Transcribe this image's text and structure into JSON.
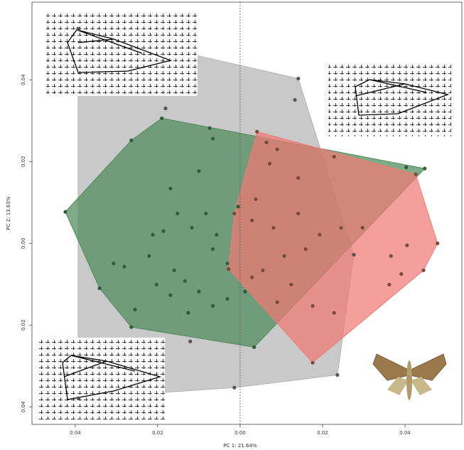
{
  "chart_data": {
    "type": "scatter",
    "x_label": "PC 1: 21.64%",
    "y_label": "PC 2: 13.63%",
    "xlim": [
      -0.0505,
      0.0538
    ],
    "ylim": [
      -0.0443,
      0.059
    ],
    "xticks": [
      {
        "value": -0.04,
        "label": "0.04"
      },
      {
        "value": -0.02,
        "label": "0.02"
      },
      {
        "value": 0,
        "label": "0.00"
      },
      {
        "value": 0.02,
        "label": "0.02"
      },
      {
        "value": 0.04,
        "label": "0.04"
      }
    ],
    "yticks": [
      {
        "value": -0.04,
        "label": "0.04"
      },
      {
        "value": -0.02,
        "label": "0.02"
      },
      {
        "value": 0,
        "label": "0.00"
      },
      {
        "value": 0.02,
        "label": "0.02"
      },
      {
        "value": 0.04,
        "label": "0.04"
      }
    ],
    "zero_line": true,
    "hulls": true,
    "series": [
      {
        "color": "#555555",
        "hull_color": "#b4b4b4",
        "x": [
          -0.0393,
          0.0141,
          0.0276,
          0.0236,
          -0.0393,
          0.0133,
          -0.0181,
          -0.0121,
          -0.0014
        ],
        "values": [
          0.0525,
          0.0403,
          -0.0028,
          -0.0322,
          -0.0379,
          0.0351,
          0.033,
          -0.024,
          -0.0353
        ]
      },
      {
        "color": "#2f5e3c",
        "hull_color": "#4f8a5c",
        "x": [
          -0.0424,
          -0.019,
          0.0448,
          0.0034,
          -0.0264,
          -0.0341,
          -0.0074,
          -0.0066,
          -0.0264,
          -0.0169,
          -0.01,
          -0.0152,
          -0.0212,
          -0.0186,
          -0.0117,
          -0.0066,
          -0.0307,
          -0.0281,
          -0.0221,
          -0.016,
          -0.0134,
          -0.01,
          -0.0066,
          -0.0031,
          -0.0169,
          -0.0255,
          -0.0126,
          -0.0057,
          -0.0083,
          -0.0203,
          -0.0031,
          -0.0005,
          0.0012,
          0.0403
        ],
        "values": [
          0.0077,
          0.0306,
          0.0183,
          -0.0254,
          -0.0205,
          -0.011,
          0.0282,
          0.0256,
          0.0252,
          0.0134,
          0.0177,
          0.0073,
          0.0021,
          0.003,
          0.0038,
          -0.0014,
          -0.0049,
          -0.0057,
          -0.0031,
          -0.0066,
          -0.0092,
          -0.0118,
          -0.0153,
          -0.0136,
          -0.0127,
          -0.0162,
          -0.017,
          0.0021,
          0.0073,
          -0.0101,
          -0.0049,
          0.009,
          -0.0118,
          0.0186
        ]
      },
      {
        "color": "#7a4a3c",
        "hull_color": "#f07a74",
        "x": [
          0.0041,
          0.0426,
          0.0479,
          0.0445,
          0.0176,
          -0.0028,
          -0.0014,
          0.0064,
          0.009,
          0.0072,
          0.0141,
          0.0228,
          0.0038,
          0.0029,
          0.0081,
          0.0141,
          0.0193,
          0.0245,
          0.0297,
          0.0107,
          0.0159,
          0.0055,
          0.0124,
          0.0176,
          0.009,
          0.0366,
          0.0405,
          0.0362,
          0.0391,
          0.0228,
          0.0029
        ],
        "values": [
          0.0273,
          0.0169,
          0.0,
          -0.0066,
          -0.0292,
          -0.0063,
          0.0073,
          0.0247,
          0.023,
          0.0195,
          0.016,
          0.0212,
          0.0108,
          0.0056,
          0.0038,
          0.0073,
          0.0021,
          0.0038,
          0.0038,
          -0.0031,
          -0.0014,
          -0.0066,
          -0.0101,
          -0.0153,
          -0.0144,
          -0.0031,
          -0.0005,
          -0.0101,
          -0.0075,
          -0.017,
          -0.0083
        ]
      }
    ]
  }
}
